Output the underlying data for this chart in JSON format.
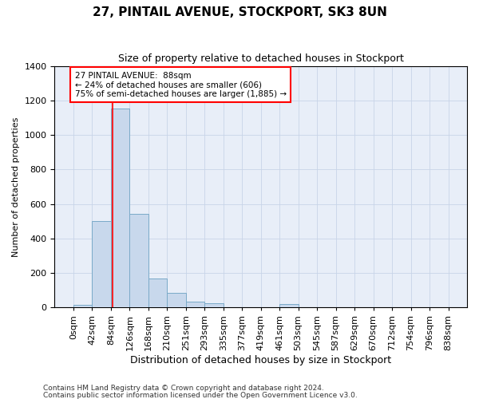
{
  "title_line1": "27, PINTAIL AVENUE, STOCKPORT, SK3 8UN",
  "title_line2": "Size of property relative to detached houses in Stockport",
  "xlabel": "Distribution of detached houses by size in Stockport",
  "ylabel": "Number of detached properties",
  "footnote1": "Contains HM Land Registry data © Crown copyright and database right 2024.",
  "footnote2": "Contains public sector information licensed under the Open Government Licence v3.0.",
  "bin_labels": [
    "0sqm",
    "42sqm",
    "84sqm",
    "126sqm",
    "168sqm",
    "210sqm",
    "251sqm",
    "293sqm",
    "335sqm",
    "377sqm",
    "419sqm",
    "461sqm",
    "503sqm",
    "545sqm",
    "587sqm",
    "629sqm",
    "670sqm",
    "712sqm",
    "754sqm",
    "796sqm",
    "838sqm"
  ],
  "bar_heights": [
    12,
    500,
    1155,
    540,
    165,
    82,
    30,
    22,
    0,
    0,
    0,
    20,
    0,
    0,
    0,
    0,
    0,
    0,
    0,
    0
  ],
  "bar_color": "#c8d8ec",
  "bar_edgecolor": "#7aaac8",
  "grid_color": "#c8d4e8",
  "background_color": "#e8eef8",
  "annotation_line1": "27 PINTAIL AVENUE:  88sqm",
  "annotation_line2": "← 24% of detached houses are smaller (606)",
  "annotation_line3": "75% of semi-detached houses are larger (1,885) →",
  "annotation_box_color": "white",
  "annotation_box_edgecolor": "red",
  "vline_x": 88,
  "vline_color": "red",
  "ylim": [
    0,
    1400
  ],
  "yticks": [
    0,
    200,
    400,
    600,
    800,
    1000,
    1200,
    1400
  ],
  "bin_width": 42,
  "title1_fontsize": 11,
  "title2_fontsize": 9,
  "ylabel_fontsize": 8,
  "xlabel_fontsize": 9,
  "tick_fontsize": 8,
  "footnote_fontsize": 6.5
}
